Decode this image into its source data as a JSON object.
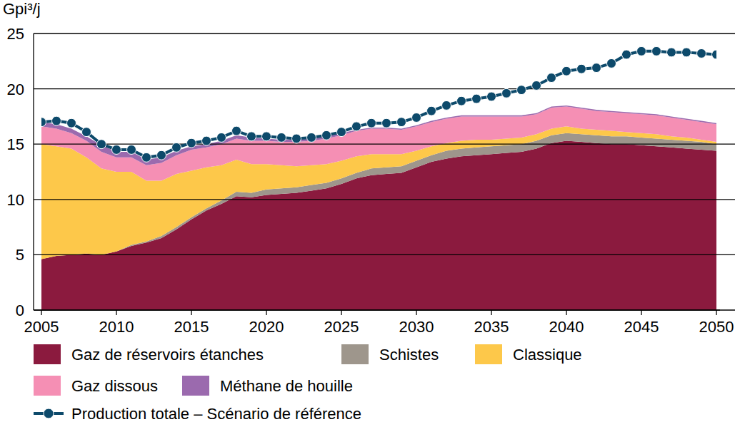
{
  "chart_data": {
    "type": "area",
    "y_label": "Gpi³/j",
    "stacked": true,
    "grid": true,
    "x": [
      2005,
      2006,
      2007,
      2008,
      2009,
      2010,
      2011,
      2012,
      2013,
      2014,
      2015,
      2016,
      2017,
      2018,
      2019,
      2020,
      2021,
      2022,
      2023,
      2024,
      2025,
      2026,
      2027,
      2028,
      2029,
      2030,
      2031,
      2032,
      2033,
      2034,
      2035,
      2036,
      2037,
      2038,
      2039,
      2040,
      2041,
      2042,
      2043,
      2044,
      2045,
      2046,
      2047,
      2048,
      2049,
      2050
    ],
    "xlim": [
      2005,
      2050
    ],
    "xticks": [
      2005,
      2010,
      2015,
      2020,
      2025,
      2030,
      2035,
      2040,
      2045,
      2050
    ],
    "ylim": [
      0,
      25
    ],
    "yticks": [
      0,
      5,
      10,
      15,
      20,
      25
    ],
    "series": [
      {
        "name": "Gaz de réservoirs étanches",
        "type": "area",
        "color": "#8b1a3e",
        "values": [
          4.6,
          4.9,
          5.0,
          5.1,
          5.0,
          5.3,
          5.8,
          6.1,
          6.5,
          7.3,
          8.2,
          9.0,
          9.6,
          10.3,
          10.2,
          10.4,
          10.5,
          10.6,
          10.8,
          11.0,
          11.4,
          11.9,
          12.2,
          12.3,
          12.4,
          12.9,
          13.4,
          13.7,
          13.9,
          14.0,
          14.1,
          14.2,
          14.3,
          14.6,
          15.1,
          15.3,
          15.2,
          15.1,
          15.0,
          15.0,
          14.9,
          14.8,
          14.7,
          14.6,
          14.5,
          14.4
        ]
      },
      {
        "name": "Schistes",
        "type": "area",
        "color": "#9e968c",
        "values": [
          0,
          0,
          0,
          0,
          0,
          0,
          0.1,
          0.1,
          0.2,
          0.2,
          0.2,
          0.2,
          0.3,
          0.4,
          0.4,
          0.5,
          0.5,
          0.5,
          0.5,
          0.5,
          0.5,
          0.5,
          0.6,
          0.6,
          0.6,
          0.6,
          0.6,
          0.7,
          0.7,
          0.7,
          0.7,
          0.7,
          0.7,
          0.7,
          0.7,
          0.7,
          0.7,
          0.7,
          0.7,
          0.7,
          0.7,
          0.7,
          0.7,
          0.7,
          0.7,
          0.6
        ]
      },
      {
        "name": "Classique",
        "type": "area",
        "color": "#fdc84a",
        "values": [
          10.4,
          9.9,
          9.6,
          8.7,
          7.8,
          7.2,
          6.6,
          5.5,
          5.0,
          4.8,
          4.2,
          3.7,
          3.2,
          2.9,
          2.6,
          2.3,
          2.1,
          1.9,
          1.8,
          1.7,
          1.6,
          1.5,
          1.3,
          1.2,
          1.1,
          0.9,
          0.8,
          0.7,
          0.7,
          0.7,
          0.6,
          0.6,
          0.6,
          0.6,
          0.6,
          0.6,
          0.5,
          0.5,
          0.5,
          0.4,
          0.4,
          0.4,
          0.3,
          0.3,
          0.2,
          0.2
        ]
      },
      {
        "name": "Gaz dissous",
        "type": "area",
        "color": "#f58fb4",
        "values": [
          1.6,
          1.6,
          1.4,
          1.5,
          1.5,
          1.3,
          1.3,
          1.4,
          1.6,
          1.7,
          1.9,
          1.8,
          1.9,
          1.9,
          2.1,
          2.1,
          2.1,
          2.2,
          2.2,
          2.3,
          2.3,
          2.3,
          2.3,
          2.3,
          2.2,
          2.2,
          2.2,
          2.2,
          2.2,
          2.1,
          2.1,
          2.0,
          1.9,
          1.8,
          1.9,
          1.8,
          1.8,
          1.7,
          1.7,
          1.7,
          1.7,
          1.7,
          1.7,
          1.6,
          1.6,
          1.6
        ]
      },
      {
        "name": "Méthane de houille",
        "type": "area",
        "color": "#9b6aae",
        "values": [
          0.4,
          0.4,
          0.4,
          0.4,
          0.6,
          0.5,
          0.5,
          0.5,
          0.5,
          0.4,
          0.3,
          0.3,
          0.3,
          0.3,
          0.3,
          0.2,
          0.2,
          0.2,
          0.2,
          0.2,
          0.2,
          0.1,
          0.1,
          0.1,
          0.1,
          0.1,
          0.1,
          0.1,
          0.1,
          0.1,
          0.1,
          0.1,
          0.1,
          0.1,
          0.1,
          0.1,
          0.1,
          0.1,
          0.1,
          0.1,
          0.1,
          0.1,
          0.1,
          0.1,
          0.1,
          0.1
        ]
      },
      {
        "name": "Production totale – Scénario de référence",
        "type": "line",
        "color": "#0d4a6b",
        "marker": "circle",
        "values": [
          17.0,
          17.1,
          16.9,
          16.1,
          15.0,
          14.5,
          14.5,
          13.8,
          14.0,
          14.7,
          15.1,
          15.3,
          15.6,
          16.2,
          15.7,
          15.7,
          15.6,
          15.5,
          15.6,
          15.8,
          16.1,
          16.6,
          16.9,
          16.9,
          17.0,
          17.4,
          18.0,
          18.5,
          18.9,
          19.1,
          19.3,
          19.6,
          19.9,
          20.3,
          21.0,
          21.6,
          21.8,
          21.9,
          22.3,
          23.1,
          23.4,
          23.4,
          23.3,
          23.3,
          23.2,
          23.1
        ]
      }
    ]
  }
}
